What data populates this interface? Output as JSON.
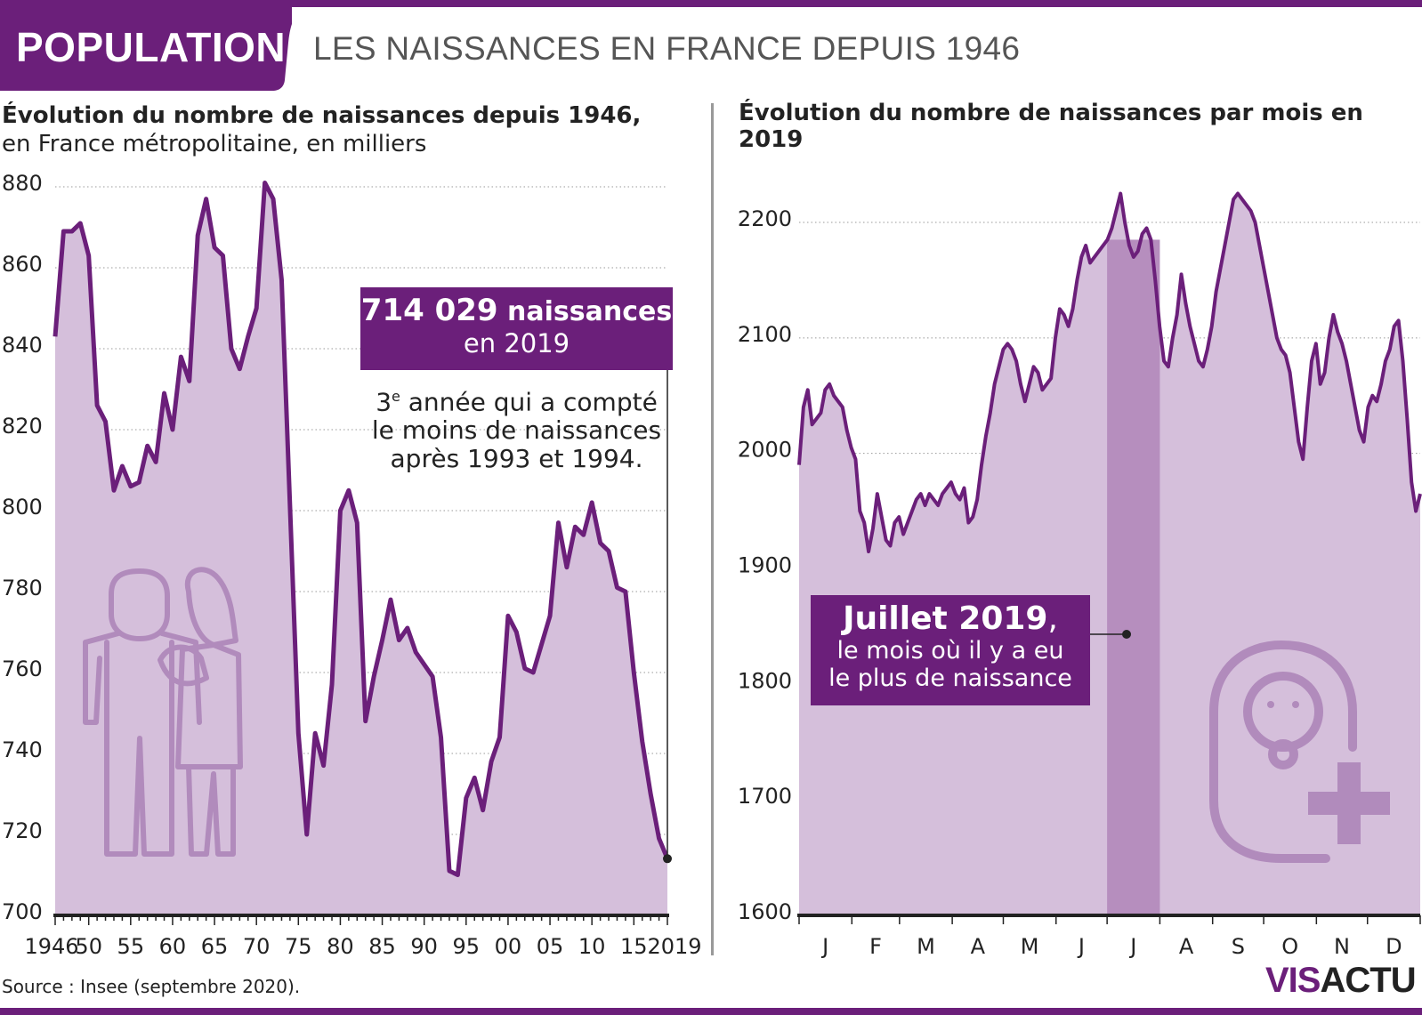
{
  "header": {
    "label": "POPULATION",
    "title": "LES NAISSANCES EN FRANCE DEPUIS 1946"
  },
  "left": {
    "title_bold": "Évolution du nombre de naissances depuis 1946,",
    "title_rest": "en France métropolitaine, en milliers",
    "callout_value": "714 029",
    "callout_unit": " naissances",
    "callout_year": "en 2019",
    "note_line1_pre": "3",
    "note_line1_sup": "e",
    "note_line1_post": " année qui a compté",
    "note_line2": "le moins de naissances",
    "note_line3": "après 1993 et 1994."
  },
  "right": {
    "title": "Évolution du nombre de naissances par mois en 2019",
    "callout_title": "Juillet 2019",
    "callout_comma": ",",
    "callout_line2": "le mois où il y a eu",
    "callout_line3": "le plus de naissance"
  },
  "source": "Source : Insee (septembre 2020).",
  "logo": {
    "part1": "VIS",
    "part2": "ACTU"
  },
  "colors": {
    "purple": "#6b1f7a",
    "fill": "#d5bfdb",
    "highlight": "#b68ebe",
    "icon": "#b18bbc"
  },
  "chart_data": [
    {
      "type": "area",
      "title": "Évolution du nombre de naissances depuis 1946, en France métropolitaine, en milliers",
      "x_tick_labels": [
        "1946",
        "50",
        "55",
        "60",
        "65",
        "70",
        "75",
        "80",
        "85",
        "90",
        "95",
        "00",
        "05",
        "10",
        "15",
        "2019"
      ],
      "y_tick_labels": [
        "700",
        "720",
        "740",
        "760",
        "780",
        "800",
        "820",
        "840",
        "860",
        "880"
      ],
      "ylim": [
        700,
        880
      ],
      "xlim": [
        1946,
        2019
      ],
      "grid": "horizontal-dotted",
      "x": [
        1946,
        1947,
        1948,
        1949,
        1950,
        1951,
        1952,
        1953,
        1954,
        1955,
        1956,
        1957,
        1958,
        1959,
        1960,
        1961,
        1962,
        1963,
        1964,
        1965,
        1966,
        1967,
        1968,
        1969,
        1970,
        1971,
        1972,
        1973,
        1974,
        1975,
        1976,
        1977,
        1978,
        1979,
        1980,
        1981,
        1982,
        1983,
        1984,
        1985,
        1986,
        1987,
        1988,
        1989,
        1990,
        1991,
        1992,
        1993,
        1994,
        1995,
        1996,
        1997,
        1998,
        1999,
        2000,
        2001,
        2002,
        2003,
        2004,
        2005,
        2006,
        2007,
        2008,
        2009,
        2010,
        2011,
        2012,
        2013,
        2014,
        2015,
        2016,
        2017,
        2018,
        2019
      ],
      "values": [
        843,
        869,
        869,
        871,
        863,
        826,
        822,
        805,
        811,
        806,
        807,
        816,
        812,
        829,
        820,
        838,
        832,
        868,
        877,
        865,
        863,
        840,
        835,
        843,
        850,
        881,
        877,
        857,
        801,
        745,
        720,
        745,
        737,
        757,
        800,
        805,
        797,
        748,
        759,
        768,
        778,
        768,
        771,
        765,
        762,
        759,
        744,
        711,
        710,
        729,
        734,
        726,
        738,
        744,
        774,
        770,
        761,
        760,
        767,
        774,
        797,
        786,
        796,
        794,
        802,
        792,
        790,
        781,
        780,
        760,
        743,
        730,
        719,
        714
      ],
      "annotation": {
        "x": 2019,
        "y": 714,
        "text": "714 029 naissances en 2019"
      }
    },
    {
      "type": "area",
      "title": "Évolution du nombre de naissances par mois en 2019",
      "x_tick_labels": [
        "J",
        "F",
        "M",
        "A",
        "M",
        "J",
        "J",
        "A",
        "S",
        "O",
        "N",
        "D"
      ],
      "y_tick_labels": [
        "1600",
        "1700",
        "1800",
        "1900",
        "2000",
        "2100",
        "2200"
      ],
      "ylim": [
        1600,
        2210
      ],
      "grid": "horizontal-dotted",
      "highlight_month": "J",
      "highlight_month_index": 7,
      "daily_values": [
        1990,
        2040,
        2055,
        2025,
        2030,
        2035,
        2055,
        2060,
        2050,
        2045,
        2040,
        2020,
        2005,
        1995,
        1950,
        1940,
        1915,
        1935,
        1965,
        1945,
        1925,
        1920,
        1940,
        1945,
        1930,
        1940,
        1950,
        1960,
        1965,
        1955,
        1965,
        1960,
        1955,
        1965,
        1970,
        1975,
        1965,
        1960,
        1970,
        1940,
        1945,
        1960,
        1990,
        2015,
        2035,
        2060,
        2075,
        2090,
        2095,
        2090,
        2080,
        2060,
        2045,
        2060,
        2075,
        2070,
        2055,
        2060,
        2065,
        2100,
        2125,
        2120,
        2110,
        2125,
        2150,
        2170,
        2180,
        2165,
        2170,
        2175,
        2180,
        2185,
        2195,
        2210,
        2225,
        2200,
        2180,
        2170,
        2175,
        2190,
        2195,
        2185,
        2150,
        2110,
        2080,
        2075,
        2100,
        2120,
        2155,
        2130,
        2110,
        2095,
        2080,
        2075,
        2090,
        2110,
        2140,
        2160,
        2180,
        2200,
        2220,
        2225,
        2220,
        2215,
        2210,
        2200,
        2180,
        2160,
        2140,
        2120,
        2100,
        2090,
        2085,
        2070,
        2040,
        2010,
        1995,
        2040,
        2080,
        2095,
        2060,
        2070,
        2100,
        2120,
        2105,
        2095,
        2080,
        2060,
        2040,
        2020,
        2010,
        2040,
        2050,
        2045,
        2060,
        2080,
        2090,
        2110,
        2115,
        2080,
        2030,
        1975,
        1950,
        1965
      ]
    }
  ]
}
